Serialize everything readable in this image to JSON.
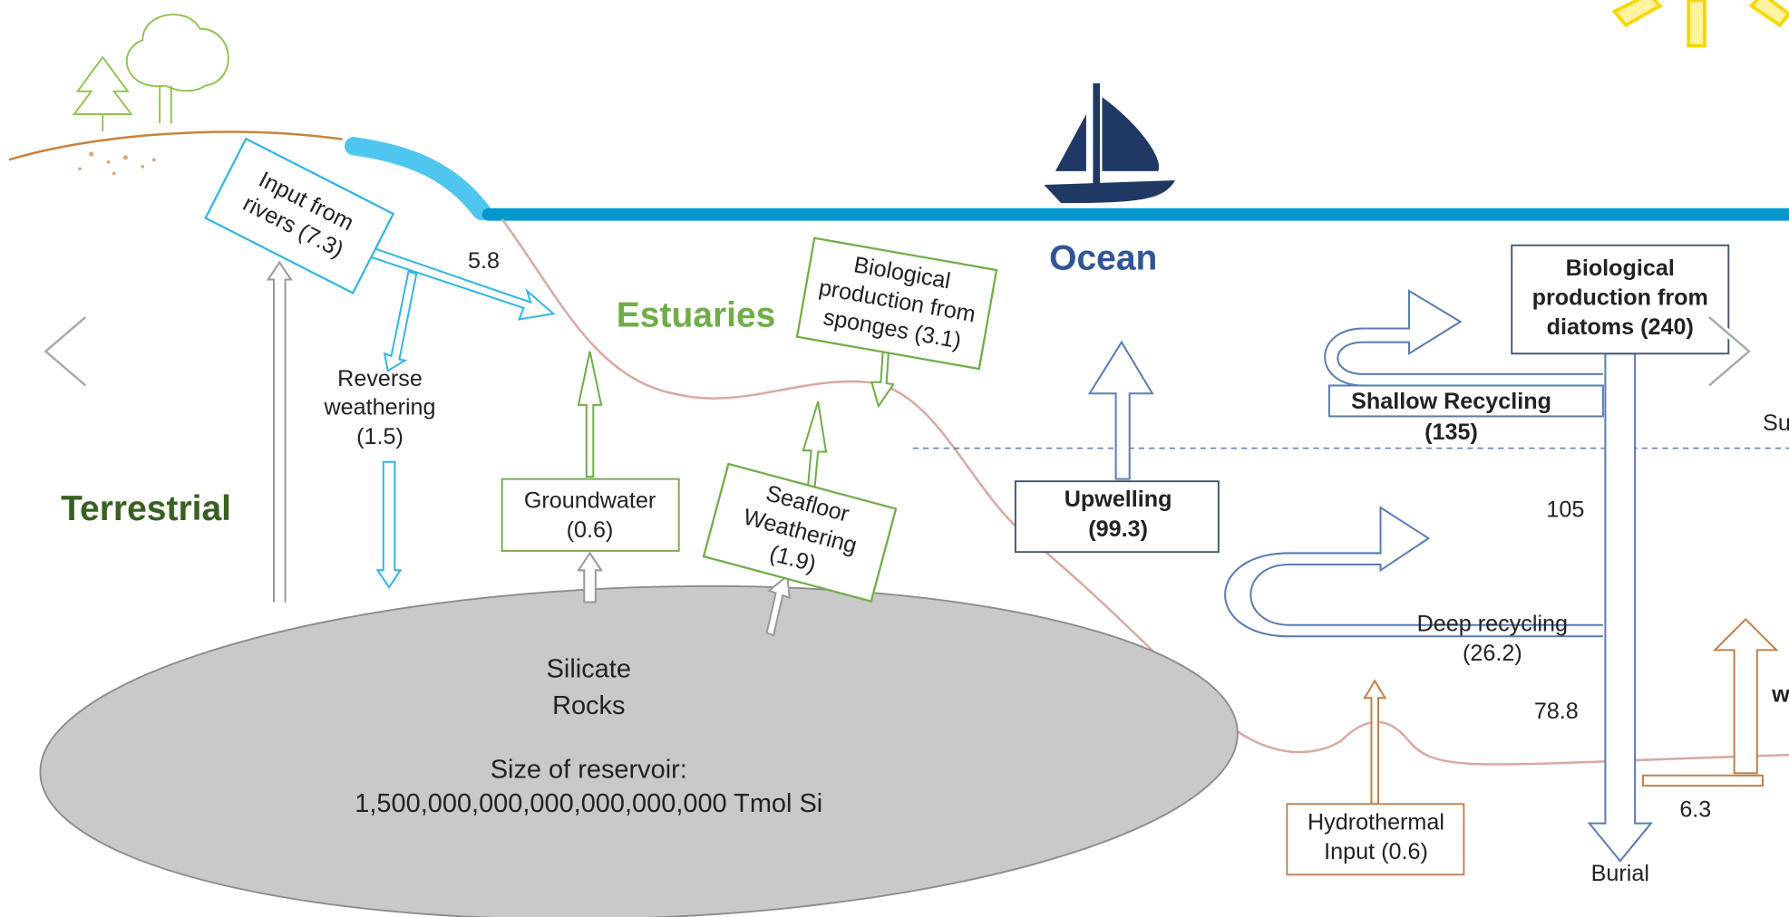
{
  "labels": {
    "input_rivers": [
      "Input from",
      "rivers (7.3)"
    ],
    "flow_5_8": "5.8",
    "reverse_weathering": [
      "Reverse",
      "weathering",
      "(1.5)"
    ],
    "terrestrial": "Terrestrial",
    "estuaries": "Estuaries",
    "sponges": [
      "Biological",
      "production from",
      "sponges (3.1)"
    ],
    "ocean": "Ocean",
    "diatoms": [
      "Biological",
      "production from",
      "diatoms (240)"
    ],
    "shallow_recycling": [
      "Shallow Recycling",
      "(135)"
    ],
    "surface_cut": "Su",
    "groundwater": [
      "Groundwater",
      "(0.6)"
    ],
    "seafloor_weathering": [
      "Seafloor",
      "Weathering",
      "(1.9)"
    ],
    "upwelling": [
      "Upwelling",
      "(99.3)"
    ],
    "flow_105": "105",
    "deep_recycling": [
      "Deep recycling",
      "(26.2)"
    ],
    "silicate_rocks": [
      "Silicate",
      "Rocks"
    ],
    "reservoir": [
      "Size of reservoir:",
      "1,500,000,000,000,000,000,000 Tmol Si"
    ],
    "flow_78_8": "78.8",
    "hydrothermal": [
      "Hydrothermal",
      "Input  (0.6)"
    ],
    "flow_6_3": "6.3",
    "burial": "Burial",
    "right_cut": "w"
  }
}
